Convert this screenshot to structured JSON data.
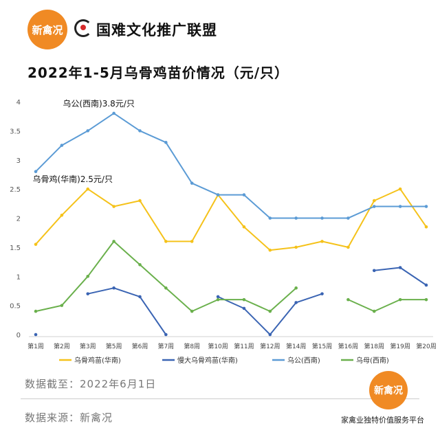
{
  "header": {
    "logo_text": "新禽况",
    "brand_name": "国难文化推广联盟"
  },
  "footer": {
    "cutoff": "数据截至：2022年6月1日",
    "source": "数据来源：新禽况",
    "badge_text": "新禽况",
    "slogan": "家禽业独特价值服务平台"
  },
  "chart_data": {
    "type": "line",
    "title": "2022年1-5月乌骨鸡苗价情况（元/只）",
    "categories": [
      "第1周",
      "第2周",
      "第3周",
      "第5周",
      "第6周",
      "第7周",
      "第8周",
      "第10周",
      "第11周",
      "第12周",
      "第14周",
      "第15周",
      "第16周",
      "第18周",
      "第19周",
      "第20周"
    ],
    "ylim": [
      0,
      4
    ],
    "yticks": [
      "0",
      "0.5",
      "1",
      "1.5",
      "2",
      "2.5",
      "3",
      "3.5",
      "4"
    ],
    "grid": false,
    "legend_position": "bottom",
    "series": [
      {
        "name": "乌骨鸡苗(华南)",
        "color": "#f5c21a",
        "values": [
          1.55,
          2.05,
          2.5,
          2.2,
          2.3,
          1.6,
          1.6,
          2.4,
          1.85,
          1.45,
          1.5,
          1.6,
          1.5,
          2.3,
          2.5,
          1.85
        ]
      },
      {
        "name": "慢大乌骨鸡苗(华南)",
        "color": "#3a64b3",
        "values": [
          0,
          null,
          0.7,
          0.8,
          0.65,
          0,
          null,
          0.65,
          0.45,
          0,
          0.55,
          0.7,
          null,
          1.1,
          1.15,
          0.85
        ]
      },
      {
        "name": "乌公(西南)",
        "color": "#5b9bd5",
        "values": [
          2.8,
          3.25,
          3.5,
          3.8,
          3.5,
          3.3,
          2.6,
          2.4,
          2.4,
          2.0,
          2.0,
          2.0,
          2.0,
          2.2,
          2.2,
          2.2
        ]
      },
      {
        "name": "乌母(西南)",
        "color": "#6ab04c",
        "values": [
          0.4,
          0.5,
          1.0,
          1.6,
          1.2,
          0.8,
          0.4,
          0.6,
          0.6,
          0.4,
          0.8,
          null,
          0.6,
          0.4,
          0.6,
          0.6
        ]
      }
    ],
    "annotations": [
      {
        "text": "乌公(西南)3.8元/只",
        "series": 2,
        "index": 3
      },
      {
        "text": "乌骨鸡(华南)2.5元/只",
        "series": 0,
        "index": 2
      }
    ]
  }
}
